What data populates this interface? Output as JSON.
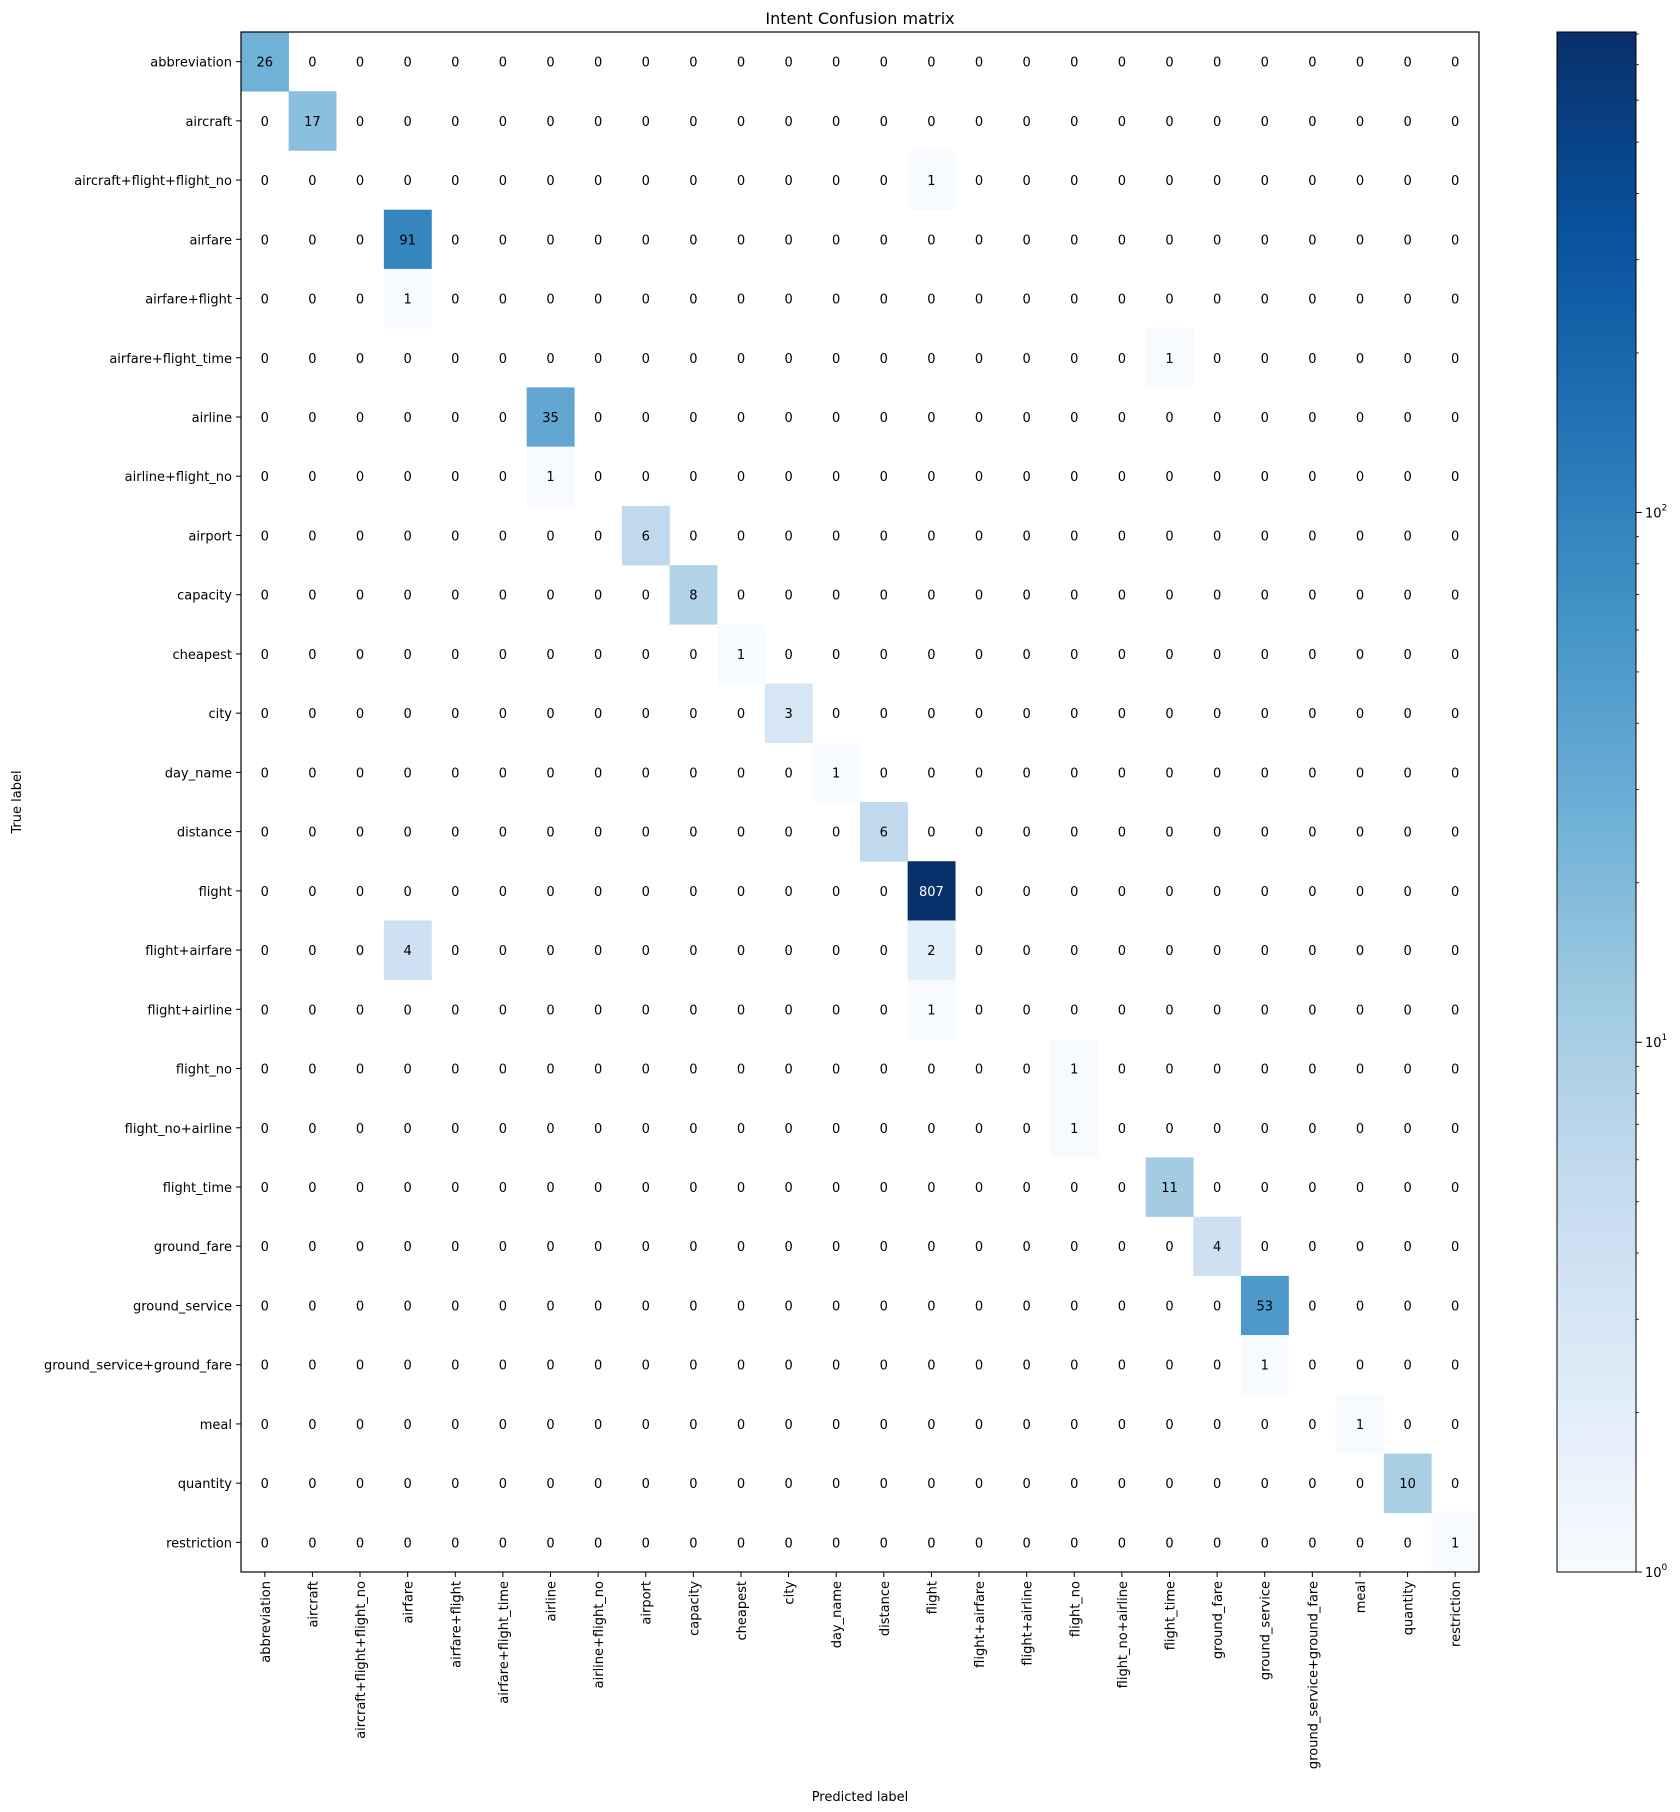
{
  "chart_data": {
    "type": "heatmap",
    "title": "Intent Confusion matrix",
    "xlabel": "Predicted label",
    "ylabel": "True label",
    "scale": "log",
    "color_range": [
      1,
      807
    ],
    "colormap": [
      "#f7fbff",
      "#deebf7",
      "#c6dbef",
      "#9ecae1",
      "#6baed6",
      "#4292c6",
      "#2171b5",
      "#08519c",
      "#08306b"
    ],
    "colorbar_ticks": [
      {
        "value": 1,
        "base": "10",
        "exp": "0"
      },
      {
        "value": 10,
        "base": "10",
        "exp": "1"
      },
      {
        "value": 100,
        "base": "10",
        "exp": "2"
      }
    ],
    "labels": [
      "abbreviation",
      "aircraft",
      "aircraft+flight+flight_no",
      "airfare",
      "airfare+flight",
      "airfare+flight_time",
      "airline",
      "airline+flight_no",
      "airport",
      "capacity",
      "cheapest",
      "city",
      "day_name",
      "distance",
      "flight",
      "flight+airfare",
      "flight+airline",
      "flight_no",
      "flight_no+airline",
      "flight_time",
      "ground_fare",
      "ground_service",
      "ground_service+ground_fare",
      "meal",
      "quantity",
      "restriction"
    ],
    "nonzero": [
      {
        "row": 0,
        "col": 0,
        "value": 26
      },
      {
        "row": 1,
        "col": 1,
        "value": 17
      },
      {
        "row": 2,
        "col": 14,
        "value": 1
      },
      {
        "row": 3,
        "col": 3,
        "value": 91
      },
      {
        "row": 4,
        "col": 3,
        "value": 1
      },
      {
        "row": 5,
        "col": 19,
        "value": 1
      },
      {
        "row": 6,
        "col": 6,
        "value": 35
      },
      {
        "row": 7,
        "col": 6,
        "value": 1
      },
      {
        "row": 8,
        "col": 8,
        "value": 6
      },
      {
        "row": 9,
        "col": 9,
        "value": 8
      },
      {
        "row": 10,
        "col": 10,
        "value": 1
      },
      {
        "row": 11,
        "col": 11,
        "value": 3
      },
      {
        "row": 12,
        "col": 12,
        "value": 1
      },
      {
        "row": 13,
        "col": 13,
        "value": 6
      },
      {
        "row": 14,
        "col": 14,
        "value": 807
      },
      {
        "row": 15,
        "col": 3,
        "value": 4
      },
      {
        "row": 15,
        "col": 14,
        "value": 2
      },
      {
        "row": 16,
        "col": 14,
        "value": 1
      },
      {
        "row": 17,
        "col": 17,
        "value": 1
      },
      {
        "row": 18,
        "col": 17,
        "value": 1
      },
      {
        "row": 19,
        "col": 19,
        "value": 11
      },
      {
        "row": 20,
        "col": 20,
        "value": 4
      },
      {
        "row": 21,
        "col": 21,
        "value": 53
      },
      {
        "row": 22,
        "col": 21,
        "value": 1
      },
      {
        "row": 23,
        "col": 23,
        "value": 1
      },
      {
        "row": 24,
        "col": 24,
        "value": 10
      },
      {
        "row": 25,
        "col": 25,
        "value": 1
      }
    ],
    "zero_label": "0"
  }
}
